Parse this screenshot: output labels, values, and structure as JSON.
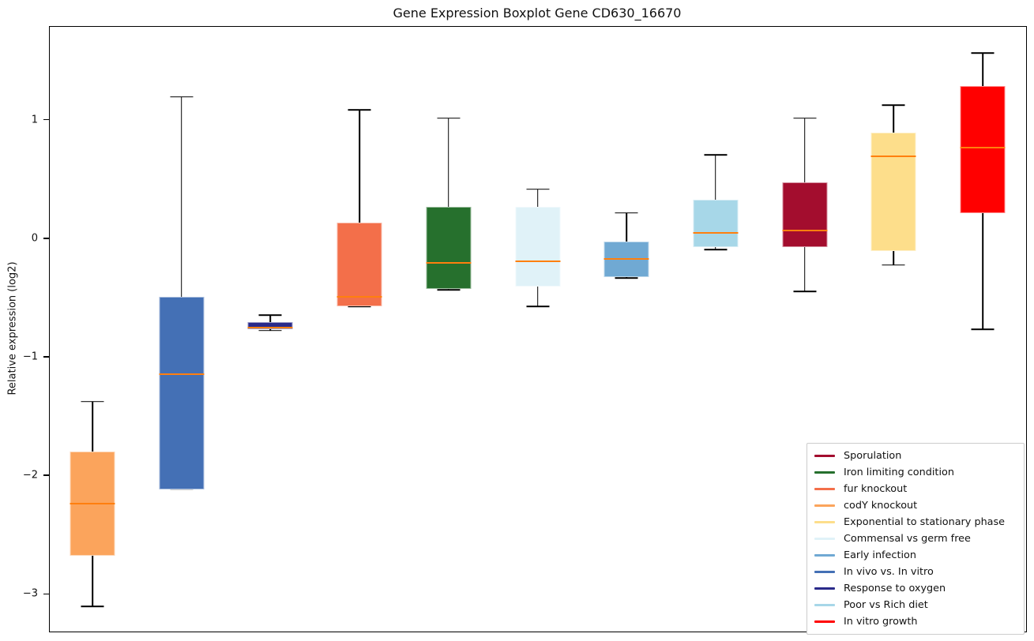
{
  "title": "Gene Expression Boxplot Gene CD630_16670",
  "chart_data": {
    "type": "boxplot",
    "title": "Gene Expression Boxplot Gene CD630_16670",
    "xlabel": "",
    "ylabel": "Relative expression (log2)",
    "ylim": [
      -3.31,
      1.79
    ],
    "grid": false,
    "background_color": "#ffffff",
    "whisker_color": "#000000",
    "median_color": "#ff7f0e",
    "yticks": [
      {
        "value": 1,
        "label": "1"
      },
      {
        "value": 0,
        "label": "0"
      },
      {
        "value": -1,
        "label": "−1"
      },
      {
        "value": -2,
        "label": "−2"
      },
      {
        "value": -3,
        "label": "−3"
      }
    ],
    "series": [
      {
        "name": "codY knockout",
        "color": "#FBA45C",
        "low": -3.1,
        "q1": -2.67,
        "median": -2.23,
        "q3": -1.79,
        "high": -1.37
      },
      {
        "name": "In vivo vs. In vitro",
        "color": "#4470B5",
        "low": -2.11,
        "q1": -2.11,
        "median": -1.14,
        "q3": -0.49,
        "high": 1.2
      },
      {
        "name": "Response to oxygen",
        "color": "#2A2A8A",
        "low": -0.77,
        "q1": -0.76,
        "median": -0.75,
        "q3": -0.7,
        "high": -0.64
      },
      {
        "name": "fur knockout",
        "color": "#F36F4A",
        "low": -0.57,
        "q1": -0.57,
        "median": -0.49,
        "q3": 0.14,
        "high": 1.09
      },
      {
        "name": "Iron limiting condition",
        "color": "#26702D",
        "low": -0.43,
        "q1": -0.42,
        "median": -0.2,
        "q3": 0.27,
        "high": 1.02
      },
      {
        "name": "Commensal vs germ free",
        "color": "#E0F2F8",
        "low": -0.57,
        "q1": -0.4,
        "median": -0.19,
        "q3": 0.27,
        "high": 0.42
      },
      {
        "name": "Early infection",
        "color": "#70A9D3",
        "low": -0.33,
        "q1": -0.32,
        "median": -0.17,
        "q3": -0.02,
        "high": 0.22
      },
      {
        "name": "Poor vs Rich diet",
        "color": "#A7D7E8",
        "low": -0.09,
        "q1": -0.07,
        "median": 0.05,
        "q3": 0.33,
        "high": 0.71
      },
      {
        "name": "Sporulation",
        "color": "#A30D2E",
        "low": -0.44,
        "q1": -0.07,
        "median": 0.07,
        "q3": 0.48,
        "high": 1.02
      },
      {
        "name": "Exponential to stationary phase",
        "color": "#FDDE8B",
        "low": -0.22,
        "q1": -0.1,
        "median": 0.7,
        "q3": 0.9,
        "high": 1.13
      },
      {
        "name": "In vitro growth",
        "color": "#FF0000",
        "low": -0.76,
        "q1": 0.22,
        "median": 0.77,
        "q3": 1.29,
        "high": 1.57
      }
    ],
    "legend": {
      "position": "lower right",
      "entries": [
        {
          "label": "Sporulation",
          "color": "#A30D2E"
        },
        {
          "label": "Iron limiting condition",
          "color": "#26702D"
        },
        {
          "label": "fur knockout",
          "color": "#F36F4A"
        },
        {
          "label": "codY knockout",
          "color": "#FBA45C"
        },
        {
          "label": "Exponential to stationary phase",
          "color": "#FDDE8B"
        },
        {
          "label": "Commensal vs germ free",
          "color": "#E0F2F8"
        },
        {
          "label": "Early infection",
          "color": "#70A9D3"
        },
        {
          "label": "In vivo vs. In vitro",
          "color": "#4470B5"
        },
        {
          "label": "Response to oxygen",
          "color": "#2A2A8A"
        },
        {
          "label": "Poor vs Rich diet",
          "color": "#A7D7E8"
        },
        {
          "label": "In vitro growth",
          "color": "#FF0000"
        }
      ]
    }
  }
}
